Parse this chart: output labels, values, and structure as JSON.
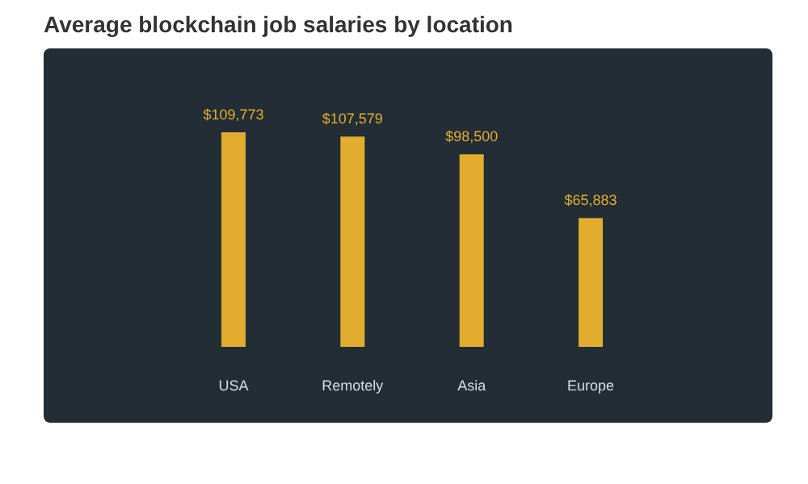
{
  "chart_data": {
    "type": "bar",
    "title": "Average blockchain job salaries by location",
    "categories": [
      "USA",
      "Remotely",
      "Asia",
      "Europe"
    ],
    "values": [
      109773,
      107579,
      98500,
      65883
    ],
    "value_labels": [
      "$109,773",
      "$107,579",
      "$98,500",
      "$65,883"
    ],
    "color": "#e2ad2f"
  }
}
